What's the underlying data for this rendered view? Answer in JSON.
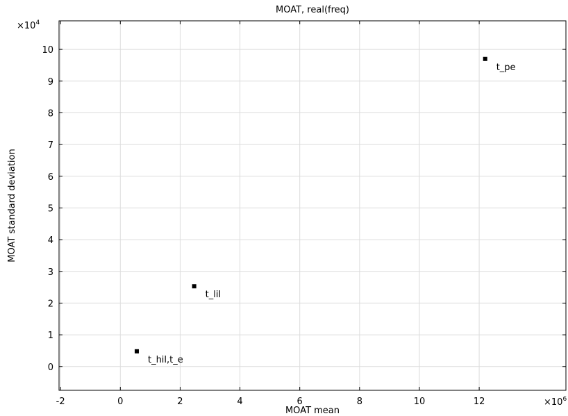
{
  "chart_data": {
    "type": "scatter",
    "title": "MOAT, real(freq)",
    "xlabel": "MOAT mean",
    "ylabel": "MOAT standard deviation",
    "x_multiplier": {
      "base": "×10",
      "exp": "6"
    },
    "y_multiplier": {
      "base": "×10",
      "exp": "4"
    },
    "xlim": [
      -2.05,
      14.9
    ],
    "ylim": [
      -0.75,
      10.9
    ],
    "xticks": [
      -2,
      0,
      2,
      4,
      6,
      8,
      10,
      12
    ],
    "yticks": [
      0,
      1,
      2,
      3,
      4,
      5,
      6,
      7,
      8,
      9,
      10
    ],
    "grid": true,
    "points": [
      {
        "x": 0.55,
        "y": 0.48,
        "label": "t_hil,t_e"
      },
      {
        "x": 2.47,
        "y": 2.53,
        "label": "t_lil"
      },
      {
        "x": 12.2,
        "y": 9.7,
        "label": "t_pe"
      }
    ]
  }
}
